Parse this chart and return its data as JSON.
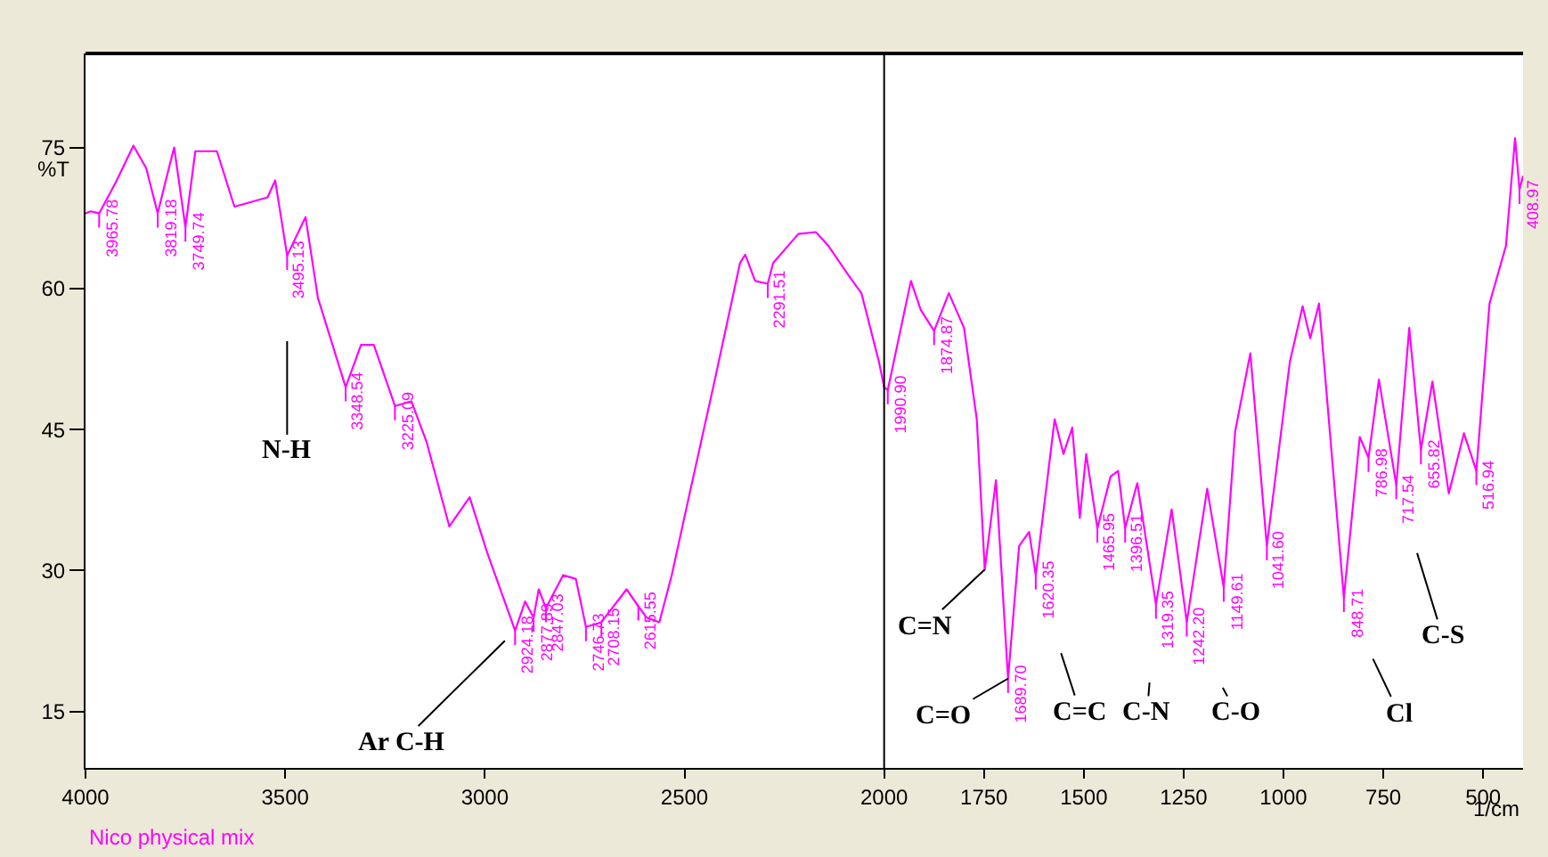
{
  "chart_data": {
    "type": "line",
    "xlabel": "1/cm",
    "ylabel": "%T",
    "xlim": [
      4000,
      400
    ],
    "ylim": [
      9,
      85
    ],
    "xticks": [
      4000,
      3500,
      3000,
      2500,
      2000,
      1750,
      1500,
      1250,
      1000,
      750,
      500
    ],
    "yticks": [
      15,
      30,
      45,
      60,
      75
    ],
    "grid": false,
    "marker": "none",
    "line_style": "solid",
    "ref_lines": [
      {
        "axis": "x",
        "value": 2000,
        "color": "#000000"
      }
    ],
    "series": [
      {
        "color": "#ff00ff",
        "x": [
          4000,
          3987,
          3965.78,
          3924,
          3880,
          3848,
          3819.18,
          3800,
          3778,
          3749.74,
          3725,
          3671,
          3627,
          3544,
          3525,
          3495.13,
          3449,
          3418,
          3348.54,
          3310,
          3278,
          3225.09,
          3184,
          3146,
          3089,
          3038,
          2994,
          2924.18,
          2899,
          2877.89,
          2865,
          2847.03,
          2804,
          2772,
          2746.73,
          2708.15,
          2645,
          2615.55,
          2595,
          2563,
          2532,
          2487,
          2424,
          2361,
          2348,
          2323,
          2291.51,
          2278,
          2215,
          2171,
          2139,
          2089,
          2057,
          2013,
          2000,
          1990.9,
          1933,
          1908,
          1874.87,
          1838,
          1800,
          1768,
          1748,
          1720,
          1689.7,
          1662,
          1637,
          1620.35,
          1573,
          1551,
          1529,
          1510,
          1494,
          1465.95,
          1433,
          1414,
          1396.51,
          1366,
          1319.35,
          1280,
          1242.2,
          1191,
          1149.61,
          1121,
          1083,
          1041.6,
          984,
          952,
          933,
          911,
          848.71,
          809,
          786.98,
          761,
          717.54,
          685,
          655.82,
          627,
          586,
          548,
          516.94,
          484,
          443,
          420,
          408.97,
          400
        ],
        "values": [
          68,
          68.2,
          68,
          71.3,
          75.2,
          72.8,
          68,
          71.3,
          75,
          66.5,
          74.6,
          74.6,
          68.7,
          69.7,
          71.5,
          63.5,
          67.6,
          59,
          49.5,
          54,
          54,
          47.5,
          48,
          43.7,
          34.7,
          37.8,
          31.9,
          23.6,
          26.7,
          25,
          28,
          26,
          29.5,
          29.1,
          24,
          24.5,
          28,
          26.2,
          25,
          24.5,
          29.5,
          38.2,
          50.3,
          62.7,
          63.6,
          60.8,
          60.5,
          62.7,
          65.8,
          66,
          64.5,
          61.4,
          59.5,
          52.2,
          49.5,
          49.2,
          60.8,
          57.7,
          55.5,
          59.5,
          55.8,
          46.1,
          30.1,
          39.6,
          18.5,
          32.6,
          34.1,
          29.5,
          46.1,
          42.4,
          45.2,
          35.6,
          42.4,
          34.5,
          40,
          40.6,
          34.5,
          39.3,
          26.4,
          36.5,
          24.5,
          38.7,
          28.2,
          44.8,
          53.1,
          32.6,
          52.2,
          58.1,
          54.7,
          58.4,
          27.1,
          44.2,
          42,
          50.3,
          39.1,
          55.8,
          42.8,
          50.1,
          38.2,
          44.6,
          40.6,
          58.4,
          64.5,
          76,
          70.5,
          72
        ]
      }
    ],
    "annotations": [
      {
        "text": "3965.78",
        "x": 3965.78,
        "y": 68
      },
      {
        "text": "3819.18",
        "x": 3819.18,
        "y": 68
      },
      {
        "text": "3749.74",
        "x": 3749.74,
        "y": 66.5
      },
      {
        "text": "3495.13",
        "x": 3495.13,
        "y": 63.5
      },
      {
        "text": "3348.54",
        "x": 3348.54,
        "y": 49.5
      },
      {
        "text": "3225.09",
        "x": 3225.09,
        "y": 47.5
      },
      {
        "text": "2924.18",
        "x": 2924.18,
        "y": 23.6
      },
      {
        "text": "2877.89",
        "x": 2877.89,
        "y": 25
      },
      {
        "text": "2847.03",
        "x": 2847.03,
        "y": 26
      },
      {
        "text": "2746.73",
        "x": 2746.73,
        "y": 24
      },
      {
        "text": "2708.15",
        "x": 2708.15,
        "y": 24.5
      },
      {
        "text": "2615.55",
        "x": 2615.55,
        "y": 26.2
      },
      {
        "text": "2291.51",
        "x": 2291.51,
        "y": 60.5
      },
      {
        "text": "1990.90",
        "x": 1990.9,
        "y": 49.2
      },
      {
        "text": "1874.87",
        "x": 1874.87,
        "y": 55.5
      },
      {
        "text": "1689.70",
        "x": 1689.7,
        "y": 18.5
      },
      {
        "text": "1620.35",
        "x": 1620.35,
        "y": 29.5
      },
      {
        "text": "1465.95",
        "x": 1465.95,
        "y": 34.5
      },
      {
        "text": "1396.51",
        "x": 1396.51,
        "y": 34.5
      },
      {
        "text": "1319.35",
        "x": 1319.35,
        "y": 26.4
      },
      {
        "text": "1242.20",
        "x": 1242.2,
        "y": 24.5
      },
      {
        "text": "1149.61",
        "x": 1149.61,
        "y": 28.2
      },
      {
        "text": "1041.60",
        "x": 1041.6,
        "y": 32.6
      },
      {
        "text": "848.71",
        "x": 848.71,
        "y": 27.1
      },
      {
        "text": "786.98",
        "x": 786.98,
        "y": 42
      },
      {
        "text": "717.54",
        "x": 717.54,
        "y": 39.1
      },
      {
        "text": "655.82",
        "x": 655.82,
        "y": 42.8
      },
      {
        "text": "516.94",
        "x": 516.94,
        "y": 40.6
      },
      {
        "text": "408.97",
        "x": 408.97,
        "y": 70.5
      },
      {
        "text": "N-H",
        "x": 3495.13,
        "y": 63.5
      },
      {
        "text": "Ar C-H",
        "x": 2924.18,
        "y": 23.6
      },
      {
        "text": "C=N",
        "x": 1748,
        "y": 30.1
      },
      {
        "text": "C=O",
        "x": 1689.7,
        "y": 18.5
      },
      {
        "text": "C=C",
        "x": 1620.35,
        "y": 29.5
      },
      {
        "text": "C-N",
        "x": 1319.35,
        "y": 26.4
      },
      {
        "text": "C-O",
        "x": 1242.2,
        "y": 24.5
      },
      {
        "text": "Cl",
        "x": 848.71,
        "y": 27.1
      },
      {
        "text": "C-S",
        "x": 717.54,
        "y": 39.1
      },
      "Nico physical mix"
    ]
  }
}
